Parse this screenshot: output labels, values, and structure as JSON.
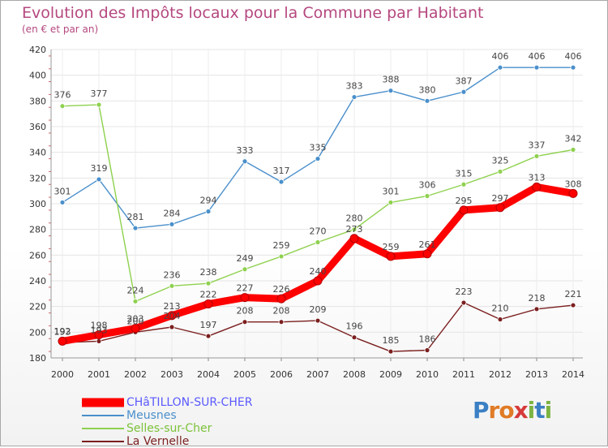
{
  "title": "Evolution des Impôts locaux pour la Commune par Habitant",
  "subtitle": "(en € et par an)",
  "logo": {
    "letters": [
      "P",
      "r",
      "o",
      "x",
      "i",
      "t",
      "i"
    ],
    "colors": [
      "#3b7fc4",
      "#e07b26",
      "#e07b26",
      "#d63a3a",
      "#7cb342",
      "#3b7fc4",
      "#7cb342"
    ]
  },
  "chart_data": {
    "type": "line",
    "title": "Evolution des Impôts locaux pour la Commune par Habitant",
    "subtitle": "(en € et par an)",
    "xlabel": "",
    "ylabel": "",
    "ylim": [
      180,
      420
    ],
    "yticks": [
      180,
      200,
      220,
      240,
      260,
      280,
      300,
      320,
      340,
      360,
      380,
      400,
      420
    ],
    "categories": [
      "2000",
      "2001",
      "2002",
      "2003",
      "2004",
      "2005",
      "2006",
      "2007",
      "2008",
      "2009",
      "2010",
      "2011",
      "2012",
      "2013",
      "2014"
    ],
    "grid": true,
    "series": [
      {
        "name": "CHâTILLON-SUR-CHER",
        "color": "#ff0000",
        "legend_color": "#5a5aff",
        "values": [
          193,
          198,
          203,
          213,
          222,
          227,
          226,
          240,
          273,
          259,
          261,
          295,
          297,
          313,
          308
        ],
        "labels": [
          "193",
          "198",
          "203",
          "213",
          "222",
          "227",
          "226",
          "240",
          "273",
          "259",
          "261",
          "295",
          "297",
          "313",
          "308"
        ]
      },
      {
        "name": "Meusnes",
        "color": "#4a8fcb",
        "legend_color": "#4a8fcb",
        "values": [
          301,
          319,
          281,
          284,
          294,
          333,
          317,
          335,
          383,
          388,
          380,
          387,
          406,
          406,
          406
        ],
        "labels": [
          "301",
          "319",
          "281",
          "284",
          "294",
          "333",
          "317",
          "335",
          "383",
          "388",
          "380",
          "387",
          "406",
          "406",
          "406"
        ]
      },
      {
        "name": "Selles-sur-Cher",
        "color": "#8fd14f",
        "legend_color": "#7cc23a",
        "values": [
          376,
          377,
          224,
          236,
          238,
          249,
          259,
          270,
          280,
          301,
          306,
          315,
          325,
          337,
          342
        ],
        "labels": [
          "376",
          "377",
          "224",
          "236",
          "238",
          "249",
          "259",
          "270",
          "280",
          "301",
          "306",
          "315",
          "325",
          "337",
          "342"
        ]
      },
      {
        "name": "La Vernelle",
        "color": "#7b1f1f",
        "legend_color": "#7b1f1f",
        "values": [
          192,
          193,
          200,
          204,
          197,
          208,
          208,
          209,
          196,
          185,
          186,
          223,
          210,
          218,
          221
        ],
        "labels": [
          "192",
          "193",
          "200",
          "204",
          "197",
          "208",
          "208",
          "209",
          "196",
          "185",
          "186",
          "223",
          "210",
          "218",
          "221"
        ]
      }
    ]
  }
}
